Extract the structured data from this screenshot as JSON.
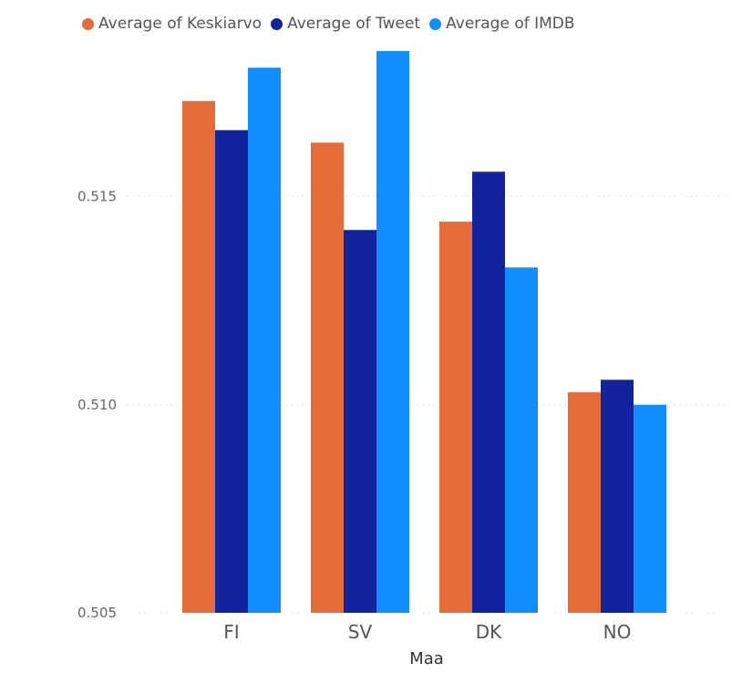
{
  "chart_data": {
    "type": "bar",
    "categories": [
      "FI",
      "SV",
      "DK",
      "NO"
    ],
    "series": [
      {
        "name": "Average of Keskiarvo",
        "color": "#E66C37",
        "values": [
          0.5173,
          0.5163,
          0.5144,
          0.5103
        ]
      },
      {
        "name": "Average of Tweet",
        "color": "#12239E",
        "values": [
          0.5166,
          0.5142,
          0.5156,
          0.5106
        ]
      },
      {
        "name": "Average of IMDB",
        "color": "#118DFF",
        "values": [
          0.5181,
          0.5185,
          0.5133,
          0.51
        ]
      }
    ],
    "xlabel": "Maa",
    "ylabel": "",
    "ylim": [
      0.505,
      0.5185
    ],
    "yticks": [
      "0.505",
      "0.510",
      "0.515"
    ],
    "grid": true,
    "legend_position": "top-left"
  }
}
